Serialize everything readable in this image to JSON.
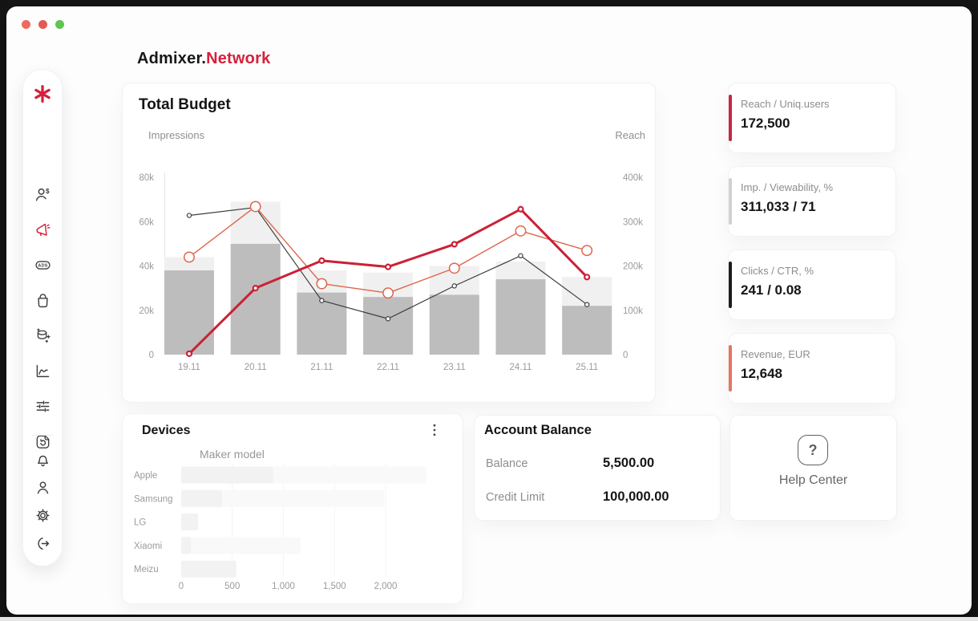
{
  "window": {
    "traffic_lights": [
      "#ee6a5f",
      "#e25b52",
      "#5ec452"
    ]
  },
  "brand": {
    "name_primary": "Admixer.",
    "name_accent": "Network",
    "accent_color": "#d3223c"
  },
  "sidebar": {
    "logo_icon": "asterisk-logo",
    "items": [
      {
        "name": "clients",
        "icon": "user-dollar-icon",
        "active": false
      },
      {
        "name": "campaigns",
        "icon": "megaphone-icon",
        "active": true
      },
      {
        "name": "ads",
        "icon": "ads-badge-icon",
        "active": false
      },
      {
        "name": "orders",
        "icon": "bag-icon",
        "active": false
      },
      {
        "name": "data",
        "icon": "database-plus-icon",
        "active": false
      },
      {
        "name": "analytics",
        "icon": "line-chart-icon",
        "active": false
      },
      {
        "name": "adjustments",
        "icon": "sliders-icon",
        "active": false
      },
      {
        "name": "reports",
        "icon": "document-refresh-icon",
        "active": false
      }
    ],
    "footer_items": [
      {
        "name": "notifications",
        "icon": "bell-icon"
      },
      {
        "name": "profile",
        "icon": "person-icon"
      },
      {
        "name": "settings",
        "icon": "gear-icon"
      },
      {
        "name": "logout",
        "icon": "logout-icon"
      }
    ]
  },
  "stat_cards": [
    {
      "label": "Reach / Uniq.users",
      "value": "172,500",
      "accent_color": "#c62641"
    },
    {
      "label": "Imp. / Viewability, %",
      "value": "311,033 / 71",
      "accent_color": "#d2d2d2"
    },
    {
      "label": "Clicks / CTR, %",
      "value": "241 / 0.08",
      "accent_color": "#1e1e1e"
    },
    {
      "label": "Revenue, EUR",
      "value": "12,648",
      "accent_color": "#e8745f"
    }
  ],
  "devices": {
    "title": "Devices",
    "menu_icon": "kebab-menu-icon"
  },
  "account_balance": {
    "title": "Account Balance",
    "rows": [
      {
        "label": "Balance",
        "value": "5,500.00"
      },
      {
        "label": "Credit Limit",
        "value": "100,000.00"
      }
    ]
  },
  "help_center": {
    "label": "Help Center",
    "icon": "question-mark-icon"
  },
  "chart_data": [
    {
      "type": "combo",
      "title": "Total Budget",
      "categories": [
        "19.11",
        "20.11",
        "21.11",
        "22.11",
        "23.11",
        "24.11",
        "25.11"
      ],
      "left_axis": {
        "label": "Impressions",
        "ticks": [
          "0",
          "20k",
          "40k",
          "60k",
          "80k"
        ],
        "tick_values": [
          0,
          20,
          40,
          60,
          80
        ],
        "max": 80,
        "unit": "thousand impressions"
      },
      "right_axis": {
        "label": "Reach",
        "ticks": [
          "0",
          "100k",
          "200k",
          "300k",
          "400k"
        ],
        "tick_values": [
          0,
          100,
          200,
          300,
          400
        ],
        "max": 400,
        "unit": "thousand reach"
      },
      "grid": false,
      "legend": false,
      "bars": [
        {
          "name": "impressions-planned",
          "color": "#f0f0f0",
          "axis": "left",
          "values_k": [
            44,
            69,
            38,
            37,
            40,
            42,
            35
          ]
        },
        {
          "name": "impressions-actual",
          "color": "#bdbdbd",
          "axis": "left",
          "values_k": [
            38,
            50,
            28,
            26,
            27,
            34,
            22
          ]
        }
      ],
      "lines": [
        {
          "name": "reach-bold-red",
          "color": "#cb2137",
          "axis": "right",
          "values_k": [
            2,
            150,
            212,
            198,
            249,
            328,
            175
          ]
        },
        {
          "name": "reach-light-red",
          "color": "#df654c",
          "axis": "right",
          "values_k": [
            220,
            334,
            160,
            139,
            195,
            279,
            235
          ]
        },
        {
          "name": "reach-black",
          "color": "#3d3d3d",
          "axis": "right",
          "values_k": [
            314,
            332,
            122,
            81,
            155,
            223,
            113
          ]
        }
      ]
    },
    {
      "type": "bar",
      "title": "Maker model",
      "orientation": "horizontal",
      "categories": [
        "Apple",
        "Samsung",
        "LG",
        "Xiaomi",
        "Meizu"
      ],
      "values": [
        900,
        400,
        165,
        95,
        540
      ],
      "secondary_values": [
        2400,
        1985,
        0,
        1170,
        0
      ],
      "bar_color": "#f2f2f2",
      "secondary_color": "#f9f9f9",
      "xticks": [
        "0",
        "500",
        "1,000",
        "1,500",
        "2,000"
      ],
      "xtick_values": [
        0,
        500,
        1000,
        1500,
        2000
      ],
      "xlim": [
        0,
        2500
      ],
      "grid": true
    }
  ]
}
